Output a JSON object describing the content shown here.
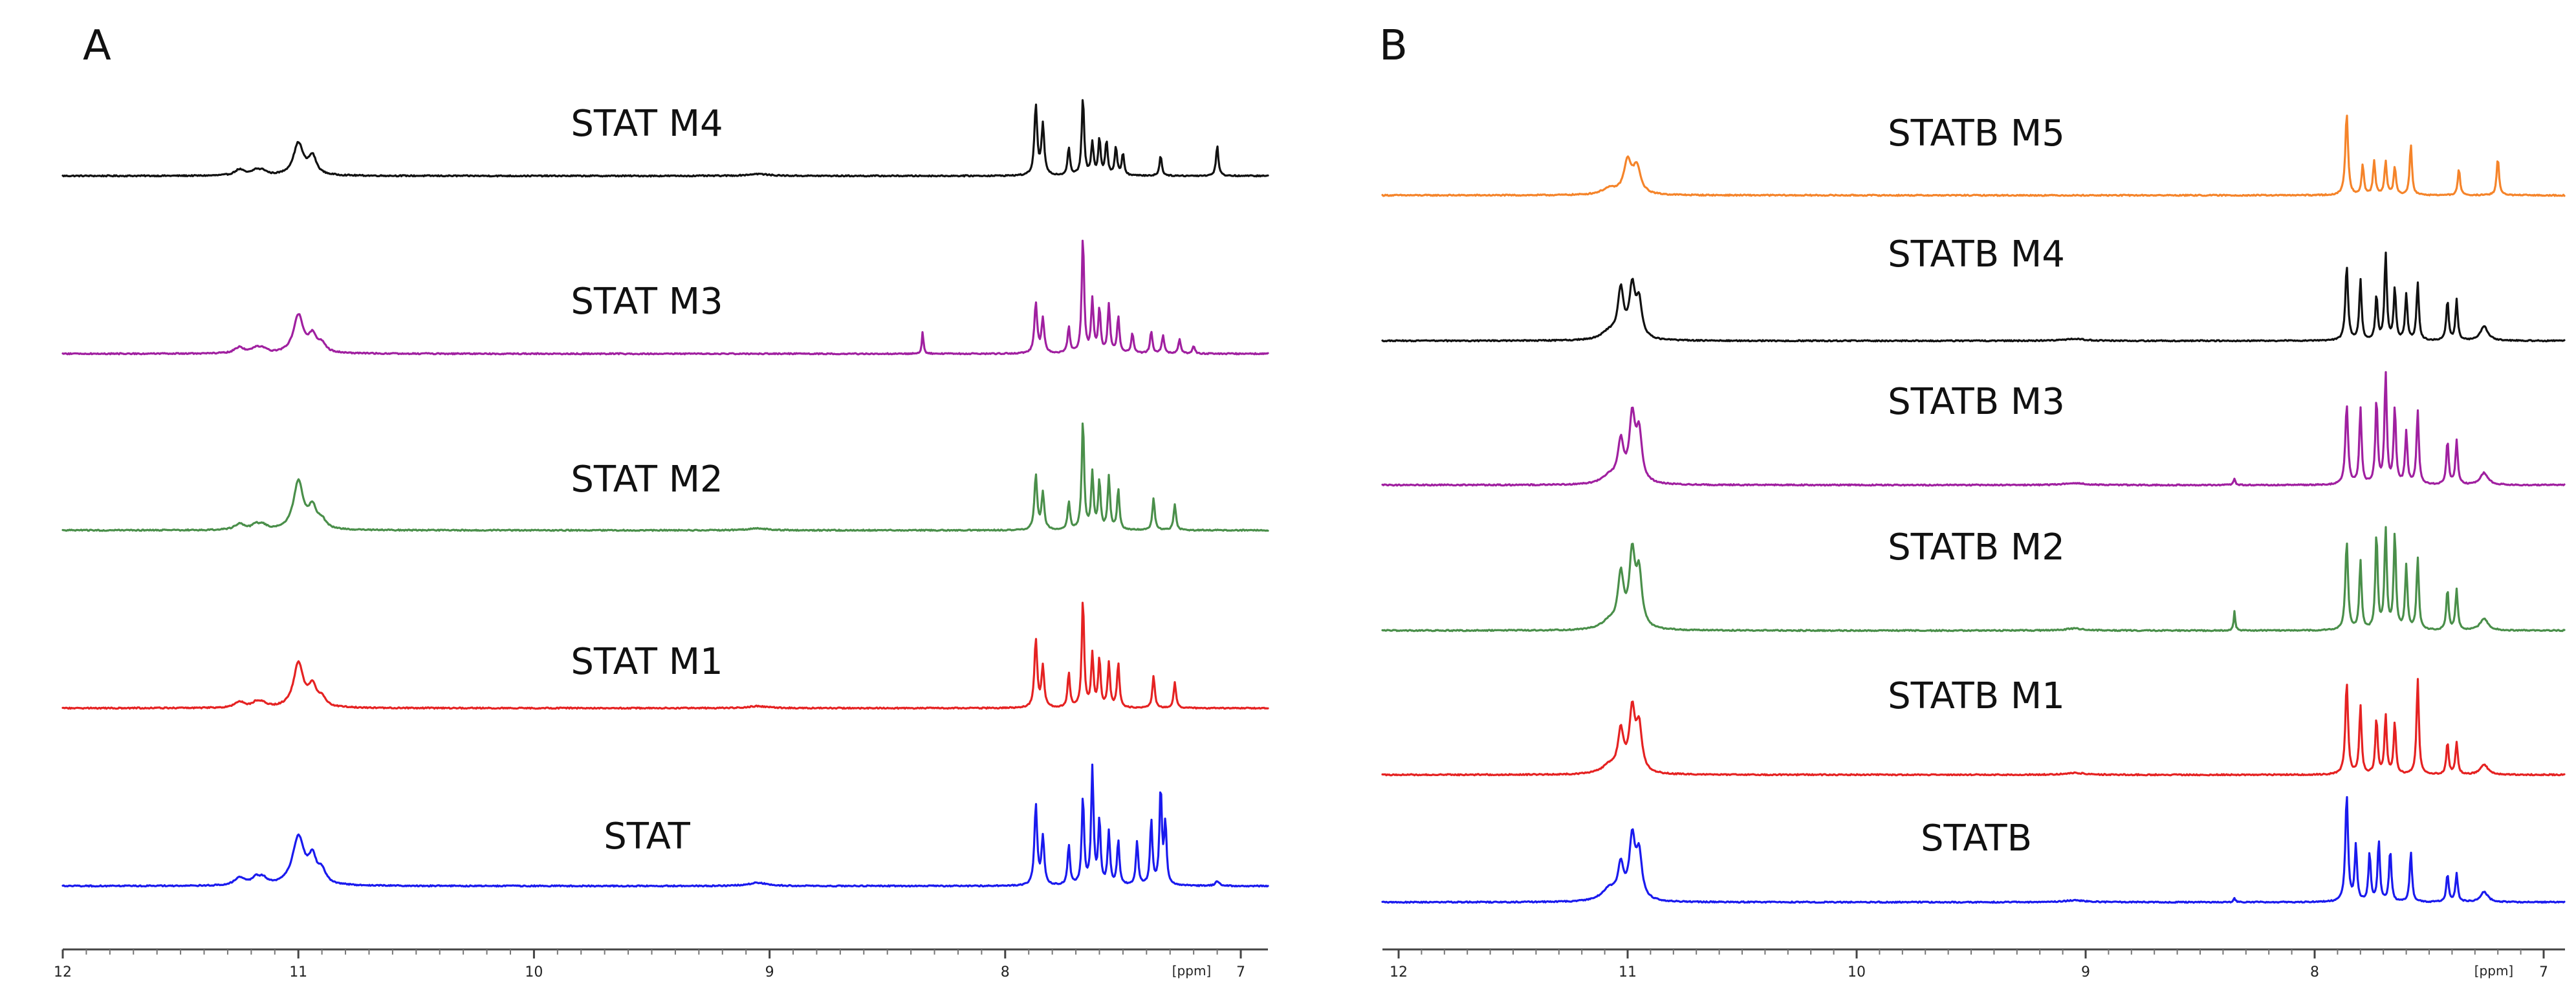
{
  "chart_data": [
    {
      "type": "line",
      "panel_label": "A",
      "title": "",
      "xlabel": "[ppm]",
      "ylabel": "",
      "x_reversed": true,
      "xlim": [
        12.15,
        7.05
      ],
      "xticks": [
        12,
        11,
        10,
        9,
        8,
        7
      ],
      "grid": false,
      "legend": "none",
      "series": [
        {
          "name": "STAT M4",
          "color": "#111111",
          "noise": 0.6,
          "peaks": [
            [
              11.25,
              0.15,
              0.025
            ],
            [
              11.18,
              0.12,
              0.02
            ],
            [
              11.15,
              0.1,
              0.02
            ],
            [
              11.0,
              0.8,
              0.025
            ],
            [
              10.94,
              0.45,
              0.02
            ],
            [
              9.05,
              0.05,
              0.05
            ],
            [
              7.87,
              1.75,
              0.007
            ],
            [
              7.84,
              1.25,
              0.007
            ],
            [
              7.73,
              0.7,
              0.006
            ],
            [
              7.67,
              1.95,
              0.006
            ],
            [
              7.63,
              0.8,
              0.006
            ],
            [
              7.6,
              0.9,
              0.006
            ],
            [
              7.57,
              0.85,
              0.006
            ],
            [
              7.53,
              0.7,
              0.006
            ],
            [
              7.5,
              0.55,
              0.006
            ],
            [
              7.34,
              0.5,
              0.006
            ],
            [
              7.1,
              0.75,
              0.006
            ]
          ]
        },
        {
          "name": "STAT M3",
          "color": "#a020a0",
          "noise": 0.6,
          "peaks": [
            [
              11.25,
              0.15,
              0.025
            ],
            [
              11.18,
              0.12,
              0.02
            ],
            [
              11.15,
              0.1,
              0.02
            ],
            [
              11.0,
              0.95,
              0.025
            ],
            [
              10.94,
              0.4,
              0.02
            ],
            [
              10.9,
              0.2,
              0.02
            ],
            [
              8.35,
              0.55,
              0.004
            ],
            [
              7.87,
              1.25,
              0.007
            ],
            [
              7.84,
              0.85,
              0.007
            ],
            [
              7.73,
              0.65,
              0.006
            ],
            [
              7.67,
              2.9,
              0.006
            ],
            [
              7.63,
              1.3,
              0.006
            ],
            [
              7.6,
              1.1,
              0.006
            ],
            [
              7.56,
              1.2,
              0.006
            ],
            [
              7.52,
              0.9,
              0.006
            ],
            [
              7.46,
              0.5,
              0.006
            ],
            [
              7.38,
              0.55,
              0.006
            ],
            [
              7.33,
              0.45,
              0.006
            ],
            [
              7.26,
              0.35,
              0.006
            ],
            [
              7.2,
              0.2,
              0.006
            ]
          ]
        },
        {
          "name": "STAT M2",
          "color": "#4a8f4a",
          "noise": 0.6,
          "peaks": [
            [
              11.25,
              0.15,
              0.025
            ],
            [
              11.18,
              0.12,
              0.02
            ],
            [
              11.15,
              0.1,
              0.02
            ],
            [
              11.0,
              1.2,
              0.025
            ],
            [
              10.94,
              0.5,
              0.02
            ],
            [
              10.9,
              0.2,
              0.02
            ],
            [
              9.05,
              0.05,
              0.05
            ],
            [
              7.87,
              1.35,
              0.007
            ],
            [
              7.84,
              0.9,
              0.007
            ],
            [
              7.73,
              0.7,
              0.006
            ],
            [
              7.67,
              2.75,
              0.006
            ],
            [
              7.63,
              1.4,
              0.006
            ],
            [
              7.6,
              1.2,
              0.006
            ],
            [
              7.56,
              1.3,
              0.006
            ],
            [
              7.52,
              1.0,
              0.006
            ],
            [
              7.37,
              0.8,
              0.006
            ],
            [
              7.28,
              0.65,
              0.006
            ]
          ]
        },
        {
          "name": "STAT M1",
          "color": "#e52222",
          "noise": 0.6,
          "peaks": [
            [
              11.25,
              0.15,
              0.025
            ],
            [
              11.18,
              0.12,
              0.02
            ],
            [
              11.15,
              0.1,
              0.02
            ],
            [
              11.0,
              1.1,
              0.025
            ],
            [
              10.94,
              0.5,
              0.02
            ],
            [
              10.9,
              0.2,
              0.02
            ],
            [
              9.05,
              0.05,
              0.05
            ],
            [
              7.87,
              1.7,
              0.007
            ],
            [
              7.84,
              1.0,
              0.007
            ],
            [
              7.73,
              0.85,
              0.006
            ],
            [
              7.67,
              2.7,
              0.006
            ],
            [
              7.63,
              1.3,
              0.006
            ],
            [
              7.6,
              1.2,
              0.006
            ],
            [
              7.56,
              1.1,
              0.006
            ],
            [
              7.52,
              1.1,
              0.006
            ],
            [
              7.37,
              0.8,
              0.006
            ],
            [
              7.28,
              0.65,
              0.006
            ]
          ]
        },
        {
          "name": "STAT",
          "color": "#1a1aee",
          "noise": 0.6,
          "peaks": [
            [
              11.25,
              0.2,
              0.025
            ],
            [
              11.18,
              0.18,
              0.02
            ],
            [
              11.15,
              0.15,
              0.02
            ],
            [
              11.0,
              1.2,
              0.03
            ],
            [
              10.94,
              0.6,
              0.02
            ],
            [
              10.9,
              0.3,
              0.02
            ],
            [
              9.05,
              0.08,
              0.05
            ],
            [
              7.87,
              2.0,
              0.007
            ],
            [
              7.84,
              1.2,
              0.007
            ],
            [
              7.73,
              1.0,
              0.006
            ],
            [
              7.67,
              2.2,
              0.006
            ],
            [
              7.63,
              2.9,
              0.006
            ],
            [
              7.6,
              1.6,
              0.006
            ],
            [
              7.56,
              1.3,
              0.006
            ],
            [
              7.52,
              1.1,
              0.006
            ],
            [
              7.44,
              1.1,
              0.006
            ],
            [
              7.38,
              1.6,
              0.006
            ],
            [
              7.34,
              2.4,
              0.006
            ],
            [
              7.32,
              1.5,
              0.006
            ],
            [
              7.1,
              0.12,
              0.01
            ]
          ]
        }
      ]
    },
    {
      "type": "line",
      "panel_label": "B",
      "title": "",
      "xlabel": "[ppm]",
      "ylabel": "",
      "x_reversed": true,
      "xlim": [
        12.15,
        7.05
      ],
      "xticks": [
        12,
        11,
        10,
        9,
        8,
        7
      ],
      "grid": false,
      "legend": "none",
      "series": [
        {
          "name": "STATB M5",
          "color": "#f5842a",
          "noise": 0.6,
          "peaks": [
            [
              11.08,
              0.15,
              0.04
            ],
            [
              11.0,
              0.8,
              0.02
            ],
            [
              10.96,
              0.65,
              0.02
            ],
            [
              7.86,
              2.05,
              0.007
            ],
            [
              7.79,
              0.75,
              0.006
            ],
            [
              7.74,
              0.85,
              0.006
            ],
            [
              7.69,
              0.85,
              0.006
            ],
            [
              7.65,
              0.7,
              0.006
            ],
            [
              7.58,
              1.25,
              0.006
            ],
            [
              7.37,
              0.65,
              0.006
            ],
            [
              7.2,
              0.95,
              0.006
            ]
          ]
        },
        {
          "name": "STATB M4",
          "color": "#111111",
          "noise": 0.6,
          "peaks": [
            [
              11.08,
              0.2,
              0.04
            ],
            [
              11.03,
              1.2,
              0.015
            ],
            [
              10.98,
              1.25,
              0.015
            ],
            [
              10.95,
              0.9,
              0.015
            ],
            [
              9.05,
              0.05,
              0.05
            ],
            [
              7.86,
              1.85,
              0.007
            ],
            [
              7.8,
              1.5,
              0.006
            ],
            [
              7.73,
              1.1,
              0.006
            ],
            [
              7.69,
              2.15,
              0.006
            ],
            [
              7.65,
              1.3,
              0.006
            ],
            [
              7.6,
              1.15,
              0.006
            ],
            [
              7.55,
              1.45,
              0.006
            ],
            [
              7.42,
              1.0,
              0.006
            ],
            [
              7.38,
              1.0,
              0.006
            ],
            [
              7.26,
              0.35,
              0.02
            ]
          ]
        },
        {
          "name": "STATB M3",
          "color": "#a020a0",
          "noise": 0.6,
          "peaks": [
            [
              11.08,
              0.2,
              0.04
            ],
            [
              11.03,
              1.0,
              0.015
            ],
            [
              10.98,
              1.6,
              0.015
            ],
            [
              10.95,
              1.2,
              0.015
            ],
            [
              9.05,
              0.05,
              0.05
            ],
            [
              8.35,
              0.15,
              0.005
            ],
            [
              7.86,
              2.0,
              0.007
            ],
            [
              7.8,
              1.9,
              0.006
            ],
            [
              7.73,
              2.1,
              0.006
            ],
            [
              7.69,
              2.75,
              0.006
            ],
            [
              7.65,
              1.9,
              0.006
            ],
            [
              7.6,
              1.3,
              0.006
            ],
            [
              7.55,
              1.85,
              0.006
            ],
            [
              7.42,
              1.1,
              0.006
            ],
            [
              7.38,
              1.1,
              0.006
            ],
            [
              7.26,
              0.3,
              0.02
            ]
          ]
        },
        {
          "name": "STATB M2",
          "color": "#4a8f4a",
          "noise": 0.6,
          "peaks": [
            [
              11.08,
              0.2,
              0.04
            ],
            [
              11.03,
              1.3,
              0.015
            ],
            [
              10.98,
              1.8,
              0.015
            ],
            [
              10.95,
              1.3,
              0.015
            ],
            [
              9.05,
              0.05,
              0.05
            ],
            [
              8.35,
              0.5,
              0.004
            ],
            [
              7.86,
              2.2,
              0.007
            ],
            [
              7.8,
              1.7,
              0.006
            ],
            [
              7.73,
              2.4,
              0.006
            ],
            [
              7.69,
              2.5,
              0.006
            ],
            [
              7.65,
              2.4,
              0.006
            ],
            [
              7.6,
              1.6,
              0.006
            ],
            [
              7.55,
              1.8,
              0.006
            ],
            [
              7.42,
              1.0,
              0.006
            ],
            [
              7.38,
              1.0,
              0.006
            ],
            [
              7.26,
              0.3,
              0.02
            ]
          ]
        },
        {
          "name": "STATB M1",
          "color": "#e52222",
          "noise": 0.6,
          "peaks": [
            [
              11.08,
              0.2,
              0.04
            ],
            [
              11.03,
              1.0,
              0.015
            ],
            [
              10.98,
              1.5,
              0.015
            ],
            [
              10.95,
              1.1,
              0.015
            ],
            [
              9.05,
              0.05,
              0.05
            ],
            [
              7.86,
              2.3,
              0.007
            ],
            [
              7.8,
              1.7,
              0.006
            ],
            [
              7.73,
              1.4,
              0.006
            ],
            [
              7.69,
              1.45,
              0.006
            ],
            [
              7.65,
              1.3,
              0.006
            ],
            [
              7.55,
              2.4,
              0.006
            ],
            [
              7.42,
              0.8,
              0.006
            ],
            [
              7.38,
              0.8,
              0.006
            ],
            [
              7.26,
              0.25,
              0.02
            ]
          ]
        },
        {
          "name": "STATB",
          "color": "#1a1aee",
          "noise": 0.6,
          "peaks": [
            [
              11.08,
              0.3,
              0.04
            ],
            [
              11.03,
              0.8,
              0.015
            ],
            [
              10.98,
              1.5,
              0.015
            ],
            [
              10.95,
              1.1,
              0.015
            ],
            [
              9.05,
              0.05,
              0.05
            ],
            [
              8.35,
              0.1,
              0.005
            ],
            [
              7.86,
              2.65,
              0.007
            ],
            [
              7.82,
              1.4,
              0.006
            ],
            [
              7.76,
              1.2,
              0.006
            ],
            [
              7.72,
              1.5,
              0.006
            ],
            [
              7.67,
              1.3,
              0.006
            ],
            [
              7.58,
              1.25,
              0.006
            ],
            [
              7.42,
              0.7,
              0.006
            ],
            [
              7.38,
              0.7,
              0.006
            ],
            [
              7.26,
              0.25,
              0.02
            ]
          ]
        }
      ]
    }
  ]
}
